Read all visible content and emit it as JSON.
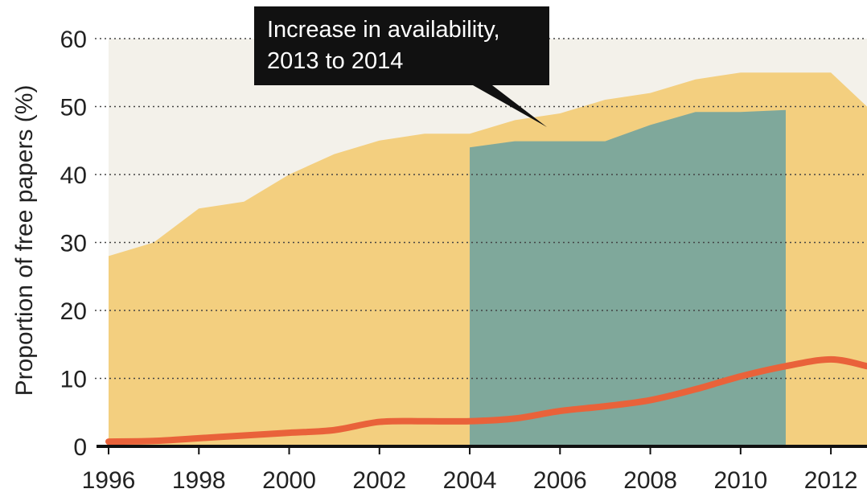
{
  "chart_data": {
    "type": "area",
    "title": "",
    "xlabel": "",
    "ylabel": "Proportion of free papers (%)",
    "xlim": [
      1996,
      2012.8
    ],
    "ylim": [
      0,
      60
    ],
    "yticks": [
      0,
      10,
      20,
      30,
      40,
      50,
      60
    ],
    "xticks": [
      1996,
      1998,
      2000,
      2002,
      2004,
      2006,
      2008,
      2010,
      2012
    ],
    "grid": "horizontal-dotted",
    "colors": {
      "plot_background": "#f3f1ea",
      "total_area": "#f3cf7f",
      "increase_area": "#7fa89b",
      "line": "#e9623a",
      "annotation_bg": "#111111"
    },
    "series": [
      {
        "x": [
          1996,
          1997,
          1998,
          1999,
          2000,
          2001,
          2002,
          2003,
          2004,
          2005,
          2006,
          2007,
          2008,
          2009,
          2010,
          2011,
          2012,
          2012.8
        ],
        "values": [
          28,
          30,
          35,
          36,
          40,
          43,
          45,
          46,
          46,
          48,
          49,
          51,
          52,
          54,
          55,
          55,
          55,
          50
        ]
      },
      {
        "x": [
          2004,
          2005,
          2006,
          2007,
          2008,
          2009,
          2010,
          2011
        ],
        "values": [
          44,
          44.9,
          44.9,
          44.9,
          47.3,
          49.2,
          49.2,
          49.5
        ]
      },
      {
        "x": [
          1996,
          1997,
          1998,
          1999,
          2000,
          2001,
          2002,
          2003,
          2004,
          2005,
          2006,
          2007,
          2008,
          2009,
          2010,
          2011,
          2012,
          2012.8
        ],
        "values": [
          0.7,
          0.8,
          1.2,
          1.6,
          2.0,
          2.4,
          3.6,
          3.7,
          3.7,
          4.1,
          5.2,
          5.9,
          6.8,
          8.4,
          10.3,
          11.8,
          12.8,
          11.8
        ]
      }
    ],
    "annotation": {
      "lines": [
        "Increase in availability,",
        "2013 to 2014"
      ]
    }
  }
}
